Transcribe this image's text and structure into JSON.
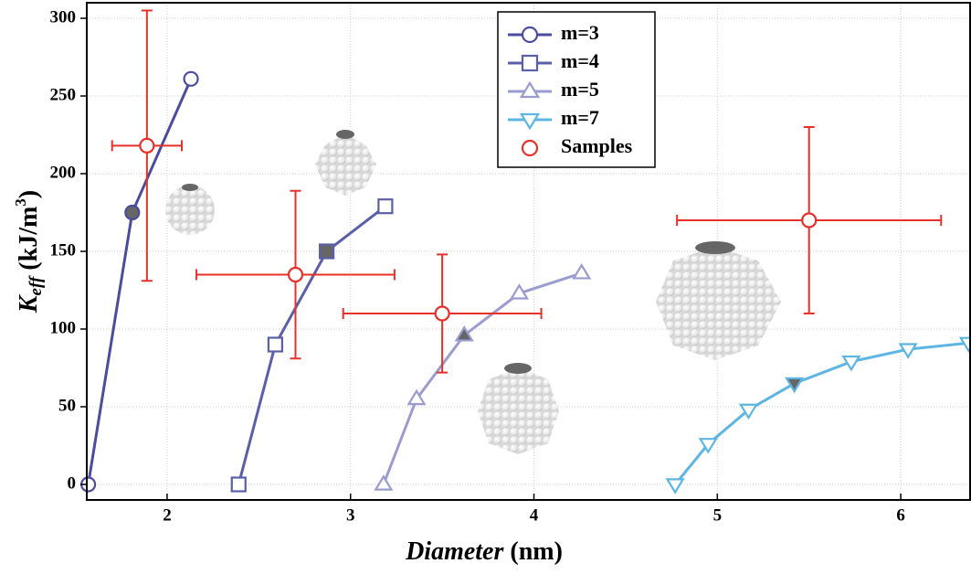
{
  "chart_data": {
    "type": "line",
    "xlabel": [
      "Diameter",
      " (nm)"
    ],
    "ylabel": [
      "K",
      "eff",
      " (kJ/m",
      "3",
      ")"
    ],
    "xlim": [
      1.562,
      6.378
    ],
    "ylim": [
      -10,
      310
    ],
    "xticks": [
      2,
      3,
      4,
      5,
      6
    ],
    "yticks": [
      0,
      50,
      100,
      150,
      200,
      250,
      300
    ],
    "grid": true,
    "filled_color": "#666666",
    "series": [
      {
        "name": "m=3",
        "color": "#4b4c9e",
        "marker": "circle",
        "line": true,
        "filled_index": 1,
        "x": [
          1.57,
          1.81,
          2.13
        ],
        "values": [
          0,
          175,
          261
        ]
      },
      {
        "name": "m=4",
        "color": "#5a5fa8",
        "marker": "square",
        "line": true,
        "filled_index": 2,
        "x": [
          2.39,
          2.59,
          2.87,
          3.19
        ],
        "values": [
          0,
          90,
          150,
          179
        ]
      },
      {
        "name": "m=5",
        "color": "#9a9cd0",
        "marker": "triangle-up",
        "line": true,
        "filled_index": 2,
        "x": [
          3.18,
          3.36,
          3.62,
          3.92,
          4.26
        ],
        "values": [
          0,
          55,
          96,
          123,
          136
        ]
      },
      {
        "name": "m=7",
        "color": "#5db5e4",
        "marker": "triangle-down",
        "line": true,
        "filled_index": 3,
        "x": [
          4.77,
          4.95,
          5.17,
          5.42,
          5.73,
          6.04,
          6.37
        ],
        "values": [
          0,
          26,
          48,
          65,
          79,
          87,
          91
        ]
      },
      {
        "name": "Samples",
        "color": "#e8302a",
        "marker": "circle",
        "line": false,
        "x": [
          1.89,
          2.7,
          3.5,
          5.5
        ],
        "values": [
          218,
          135,
          110,
          170
        ],
        "xerr": [
          0.19,
          0.54,
          0.54,
          0.72
        ],
        "yerr": [
          87,
          54,
          38,
          60
        ]
      }
    ]
  }
}
